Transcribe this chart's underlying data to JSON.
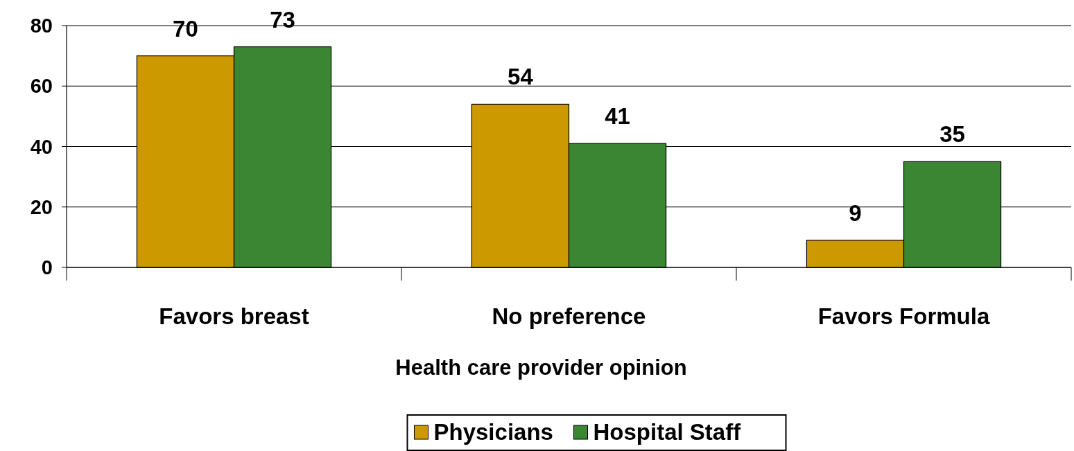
{
  "chart_data": {
    "type": "bar",
    "xlabel": "Health care provider opinion",
    "categories": [
      "Favors breast",
      "No preference",
      "Favors Formula"
    ],
    "series": [
      {
        "name": "Physicians",
        "color": "#cc9900",
        "values": [
          70,
          54,
          9
        ]
      },
      {
        "name": "Hospital Staff",
        "color": "#3a8632",
        "values": [
          73,
          41,
          35
        ]
      }
    ],
    "ylim": [
      0,
      80
    ],
    "yticks": [
      0,
      20,
      40,
      60,
      80
    ],
    "grid": "y",
    "legend": "bottom",
    "data_labels": true
  }
}
